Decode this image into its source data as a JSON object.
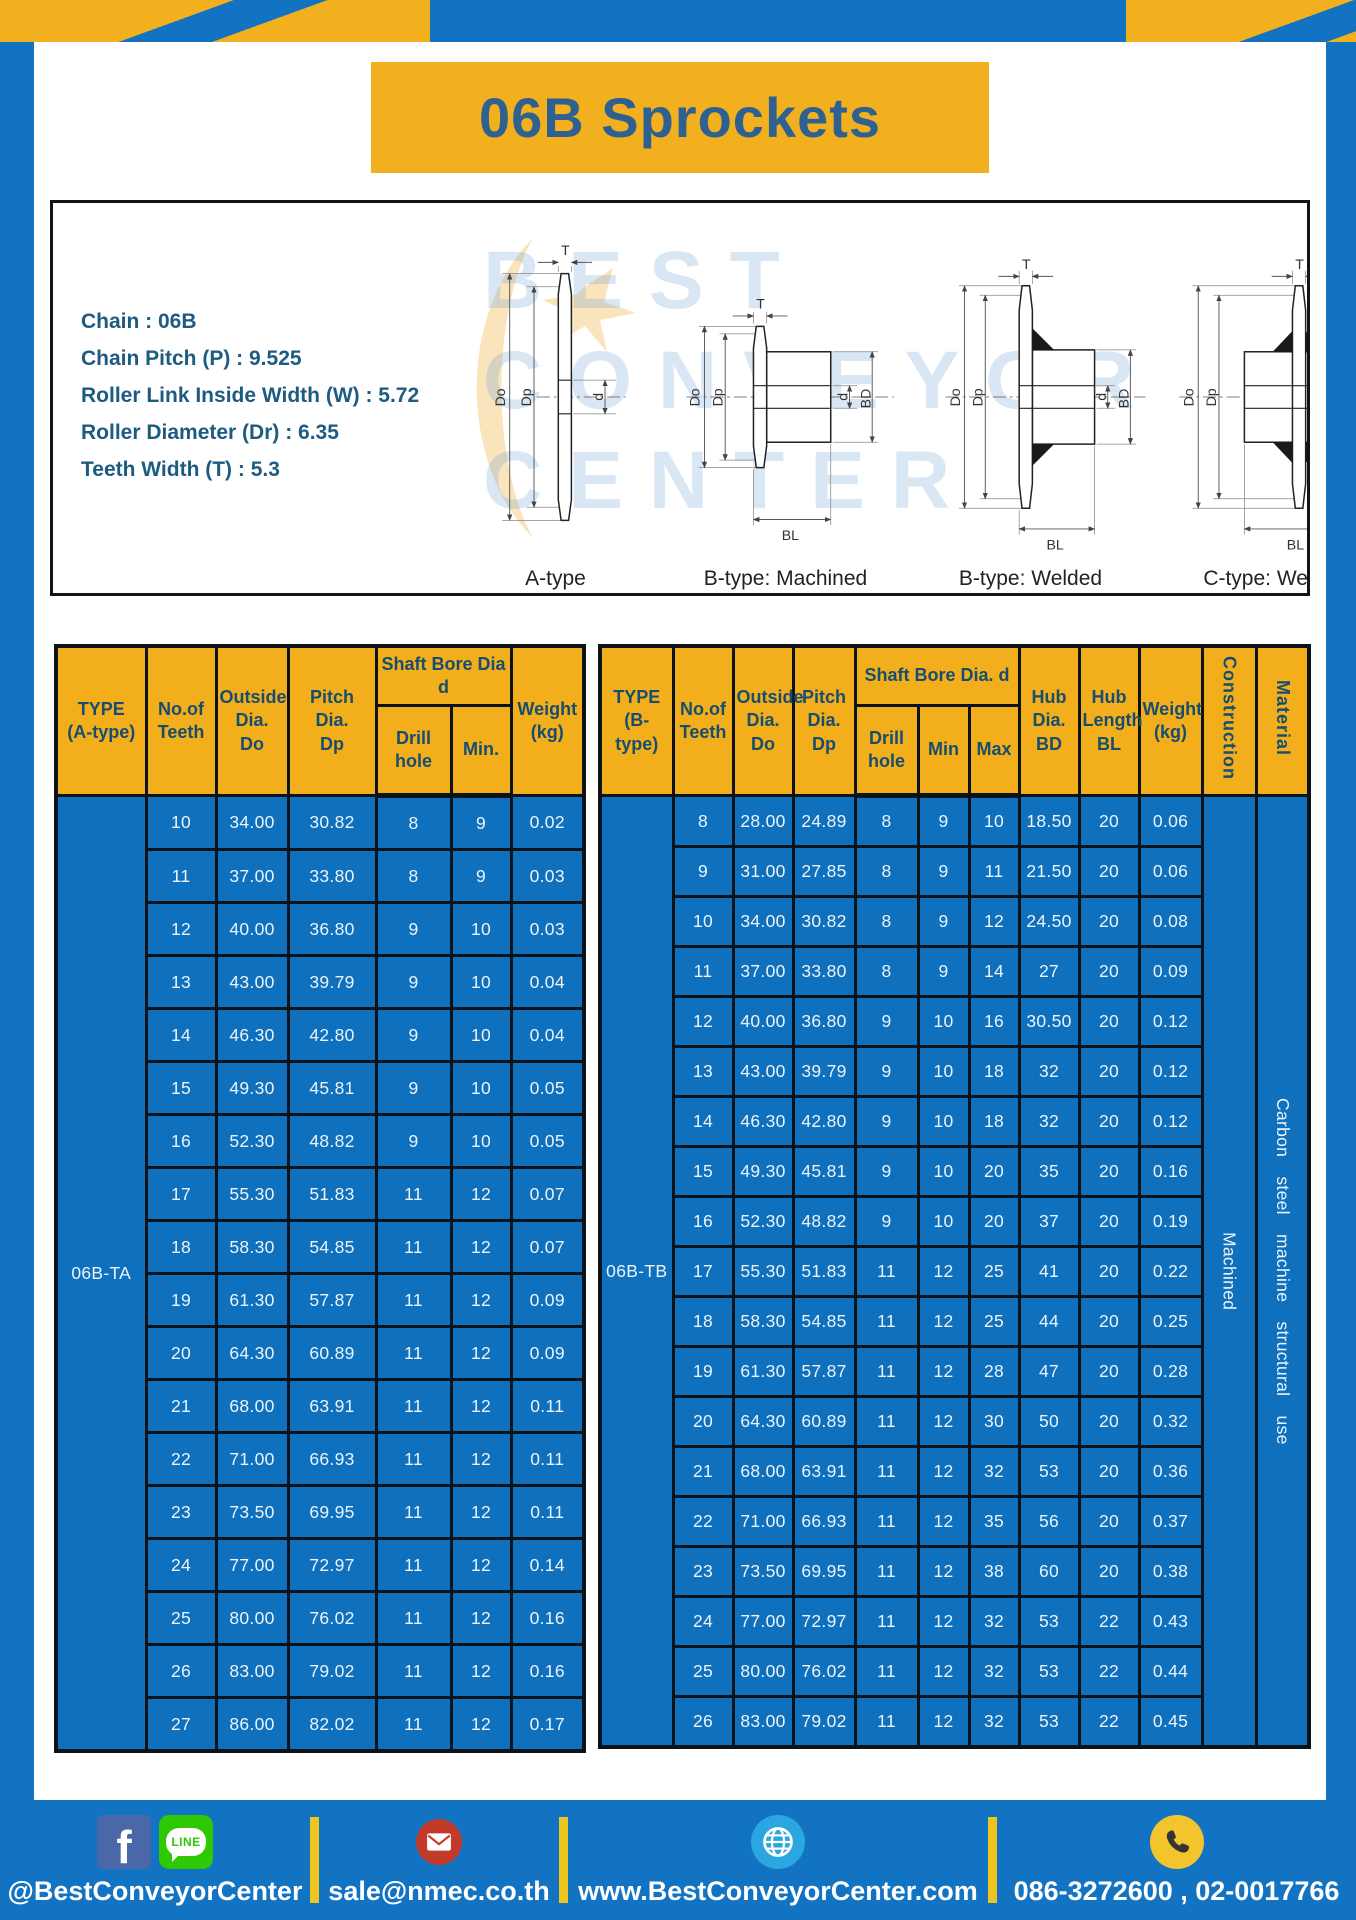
{
  "page": {
    "title": "06B Sprockets"
  },
  "colors": {
    "accent_yellow": "#F2B01E",
    "base_blue": "#1173C2",
    "header_text": "#174E6F",
    "cell_text": "#EDF4FA"
  },
  "specs": {
    "lines": [
      "Chain  : 06B",
      "Chain Pitch (P)  :  9.525",
      "Roller Link Inside Width (W)  :  5.72",
      "Roller Diameter (Dr)  : 6.35",
      "Teeth Width (T)  :  5.3"
    ]
  },
  "watermark": {
    "lines": [
      "BEST",
      "CONVEYOR",
      "CENTER"
    ]
  },
  "diagrams": {
    "labels": [
      "A-type",
      "B-type: Machined",
      "B-type: Welded",
      "C-type: Welded"
    ],
    "dims": {
      "t": "T",
      "do": "Do",
      "dp": "Dp",
      "d": "d",
      "bd": "BD",
      "bl": "BL"
    }
  },
  "table_a": {
    "headers": {
      "type": "TYPE\n(A-type)",
      "teeth": "No.of\nTeeth",
      "outside": "Outside\nDia.\nDo",
      "pitch": "Pitch Dia.\nDp",
      "shaft": "Shaft Bore Dia d",
      "drill": "Drill hole",
      "min": "Min.",
      "weight": "Weight\n(kg)"
    },
    "type_label": "06B-TA",
    "rows": [
      [
        "10",
        "34.00",
        "30.82",
        "8",
        "9",
        "0.02"
      ],
      [
        "11",
        "37.00",
        "33.80",
        "8",
        "9",
        "0.03"
      ],
      [
        "12",
        "40.00",
        "36.80",
        "9",
        "10",
        "0.03"
      ],
      [
        "13",
        "43.00",
        "39.79",
        "9",
        "10",
        "0.04"
      ],
      [
        "14",
        "46.30",
        "42.80",
        "9",
        "10",
        "0.04"
      ],
      [
        "15",
        "49.30",
        "45.81",
        "9",
        "10",
        "0.05"
      ],
      [
        "16",
        "52.30",
        "48.82",
        "9",
        "10",
        "0.05"
      ],
      [
        "17",
        "55.30",
        "51.83",
        "11",
        "12",
        "0.07"
      ],
      [
        "18",
        "58.30",
        "54.85",
        "11",
        "12",
        "0.07"
      ],
      [
        "19",
        "61.30",
        "57.87",
        "11",
        "12",
        "0.09"
      ],
      [
        "20",
        "64.30",
        "60.89",
        "11",
        "12",
        "0.09"
      ],
      [
        "21",
        "68.00",
        "63.91",
        "11",
        "12",
        "0.11"
      ],
      [
        "22",
        "71.00",
        "66.93",
        "11",
        "12",
        "0.11"
      ],
      [
        "23",
        "73.50",
        "69.95",
        "11",
        "12",
        "0.11"
      ],
      [
        "24",
        "77.00",
        "72.97",
        "11",
        "12",
        "0.14"
      ],
      [
        "25",
        "80.00",
        "76.02",
        "11",
        "12",
        "0.16"
      ],
      [
        "26",
        "83.00",
        "79.02",
        "11",
        "12",
        "0.16"
      ],
      [
        "27",
        "86.00",
        "82.02",
        "11",
        "12",
        "0.17"
      ]
    ]
  },
  "table_b": {
    "headers": {
      "type": "TYPE\n(B-type)",
      "teeth": "No.of\nTeeth",
      "outside": "Outside\nDia.\nDo",
      "pitch": "Pitch\nDia.\nDp",
      "shaft": "Shaft Bore Dia.  d",
      "drill": "Drill hole",
      "min": "Min",
      "max": "Max",
      "hub_dia": "Hub\nDia.\nBD",
      "hub_len": "Hub\nLength\nBL",
      "weight": "Weight\n(kg)",
      "construction": "Construction",
      "material": "Material"
    },
    "type_label": "06B-TB",
    "construction_value": "Machined",
    "material_value": "Carbon steel machine structural use",
    "rows": [
      [
        "8",
        "28.00",
        "24.89",
        "8",
        "9",
        "10",
        "18.50",
        "20",
        "0.06"
      ],
      [
        "9",
        "31.00",
        "27.85",
        "8",
        "9",
        "11",
        "21.50",
        "20",
        "0.06"
      ],
      [
        "10",
        "34.00",
        "30.82",
        "8",
        "9",
        "12",
        "24.50",
        "20",
        "0.08"
      ],
      [
        "11",
        "37.00",
        "33.80",
        "8",
        "9",
        "14",
        "27",
        "20",
        "0.09"
      ],
      [
        "12",
        "40.00",
        "36.80",
        "9",
        "10",
        "16",
        "30.50",
        "20",
        "0.12"
      ],
      [
        "13",
        "43.00",
        "39.79",
        "9",
        "10",
        "18",
        "32",
        "20",
        "0.12"
      ],
      [
        "14",
        "46.30",
        "42.80",
        "9",
        "10",
        "18",
        "32",
        "20",
        "0.12"
      ],
      [
        "15",
        "49.30",
        "45.81",
        "9",
        "10",
        "20",
        "35",
        "20",
        "0.16"
      ],
      [
        "16",
        "52.30",
        "48.82",
        "9",
        "10",
        "20",
        "37",
        "20",
        "0.19"
      ],
      [
        "17",
        "55.30",
        "51.83",
        "11",
        "12",
        "25",
        "41",
        "20",
        "0.22"
      ],
      [
        "18",
        "58.30",
        "54.85",
        "11",
        "12",
        "25",
        "44",
        "20",
        "0.25"
      ],
      [
        "19",
        "61.30",
        "57.87",
        "11",
        "12",
        "28",
        "47",
        "20",
        "0.28"
      ],
      [
        "20",
        "64.30",
        "60.89",
        "11",
        "12",
        "30",
        "50",
        "20",
        "0.32"
      ],
      [
        "21",
        "68.00",
        "63.91",
        "11",
        "12",
        "32",
        "53",
        "20",
        "0.36"
      ],
      [
        "22",
        "71.00",
        "66.93",
        "11",
        "12",
        "35",
        "56",
        "20",
        "0.37"
      ],
      [
        "23",
        "73.50",
        "69.95",
        "11",
        "12",
        "38",
        "60",
        "20",
        "0.38"
      ],
      [
        "24",
        "77.00",
        "72.97",
        "11",
        "12",
        "32",
        "53",
        "22",
        "0.43"
      ],
      [
        "25",
        "80.00",
        "76.02",
        "11",
        "12",
        "32",
        "53",
        "22",
        "0.44"
      ],
      [
        "26",
        "83.00",
        "79.02",
        "11",
        "12",
        "32",
        "53",
        "22",
        "0.45"
      ]
    ]
  },
  "footer": {
    "facebook_letter": "f",
    "line_label": "LINE",
    "facebook_handle": "@BestConveyorCenter",
    "email": "sale@nmec.co.th",
    "website": "www.BestConveyorCenter.com",
    "phones": "086-3272600 , 02-0017766"
  }
}
